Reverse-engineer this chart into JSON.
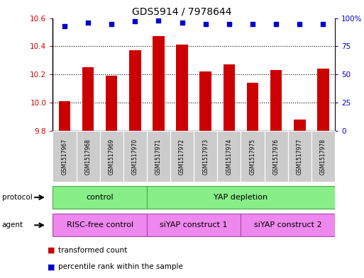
{
  "title": "GDS5914 / 7978644",
  "samples": [
    "GSM1517967",
    "GSM1517968",
    "GSM1517969",
    "GSM1517970",
    "GSM1517971",
    "GSM1517972",
    "GSM1517973",
    "GSM1517974",
    "GSM1517975",
    "GSM1517976",
    "GSM1517977",
    "GSM1517978"
  ],
  "bar_values": [
    10.01,
    10.25,
    10.19,
    10.37,
    10.47,
    10.41,
    10.22,
    10.27,
    10.14,
    10.23,
    9.88,
    10.24
  ],
  "dot_values": [
    93,
    96,
    95,
    97,
    98,
    96,
    95,
    95,
    95,
    95,
    95,
    95
  ],
  "ylim_left": [
    9.8,
    10.6
  ],
  "ylim_right": [
    0,
    100
  ],
  "yticks_left": [
    9.8,
    10.0,
    10.2,
    10.4,
    10.6
  ],
  "yticks_right": [
    0,
    25,
    50,
    75,
    100
  ],
  "bar_color": "#cc0000",
  "dot_color": "#0000cc",
  "bar_bottom": 9.8,
  "protocol_color": "#88ee88",
  "agent_color": "#ee88ee",
  "legend_items": [
    "transformed count",
    "percentile rank within the sample"
  ],
  "legend_colors": [
    "#cc0000",
    "#0000cc"
  ],
  "background_color": "#ffffff",
  "tick_label_color_left": "#cc0000",
  "tick_label_color_right": "#0000cc",
  "label_gray": "#cccccc"
}
